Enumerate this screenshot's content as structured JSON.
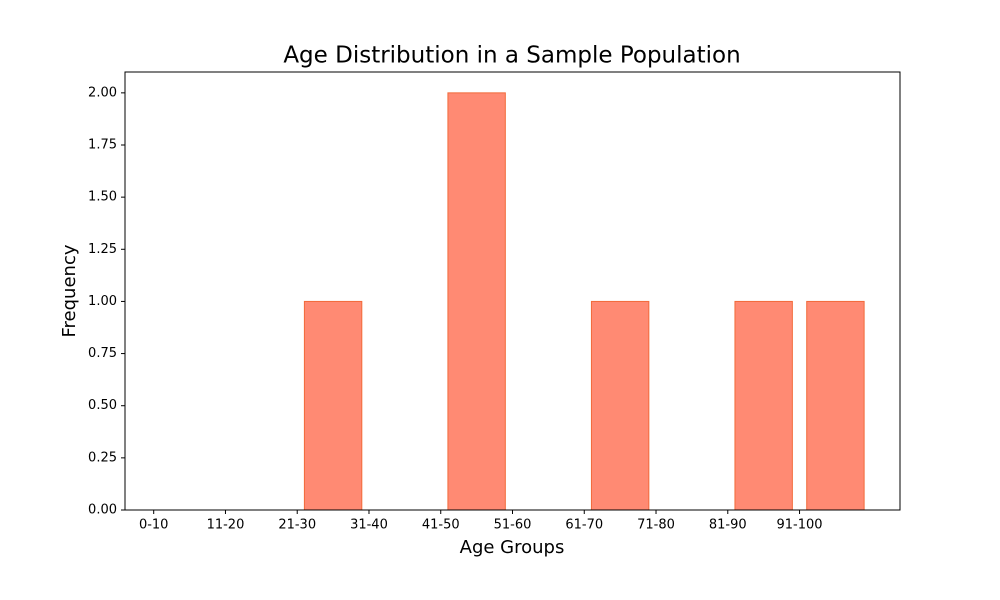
{
  "chart_data": {
    "type": "histogram",
    "title": "Age Distribution in a Sample Population",
    "xlabel": "Age Groups",
    "ylabel": "Frequency",
    "bins": [
      0,
      10,
      20,
      30,
      40,
      50,
      60,
      70,
      80,
      90,
      100
    ],
    "values": [
      0,
      0,
      1,
      0,
      2,
      0,
      1,
      0,
      1,
      1
    ],
    "color": "#ff8a73",
    "edgecolor": "#f26a3a",
    "rwidth": 0.8,
    "xlim": [
      -4,
      104
    ],
    "xticks": [
      {
        "value": 0,
        "label": "0-10"
      },
      {
        "value": 10,
        "label": "11-20"
      },
      {
        "value": 20,
        "label": "21-30"
      },
      {
        "value": 30,
        "label": "31-40"
      },
      {
        "value": 40,
        "label": "41-50"
      },
      {
        "value": 50,
        "label": "51-60"
      },
      {
        "value": 60,
        "label": "61-70"
      },
      {
        "value": 70,
        "label": "71-80"
      },
      {
        "value": 80,
        "label": "81-90"
      },
      {
        "value": 90,
        "label": "91-100"
      }
    ],
    "ylim": [
      0,
      2.1
    ],
    "yticks": [
      {
        "value": 0,
        "label": "0.00"
      },
      {
        "value": 0.25,
        "label": "0.25"
      },
      {
        "value": 0.5,
        "label": "0.50"
      },
      {
        "value": 0.75,
        "label": "0.75"
      },
      {
        "value": 1,
        "label": "1.00"
      },
      {
        "value": 1.25,
        "label": "1.25"
      },
      {
        "value": 1.5,
        "label": "1.50"
      },
      {
        "value": 1.75,
        "label": "1.75"
      },
      {
        "value": 2,
        "label": "2.00"
      }
    ],
    "grid": false
  }
}
